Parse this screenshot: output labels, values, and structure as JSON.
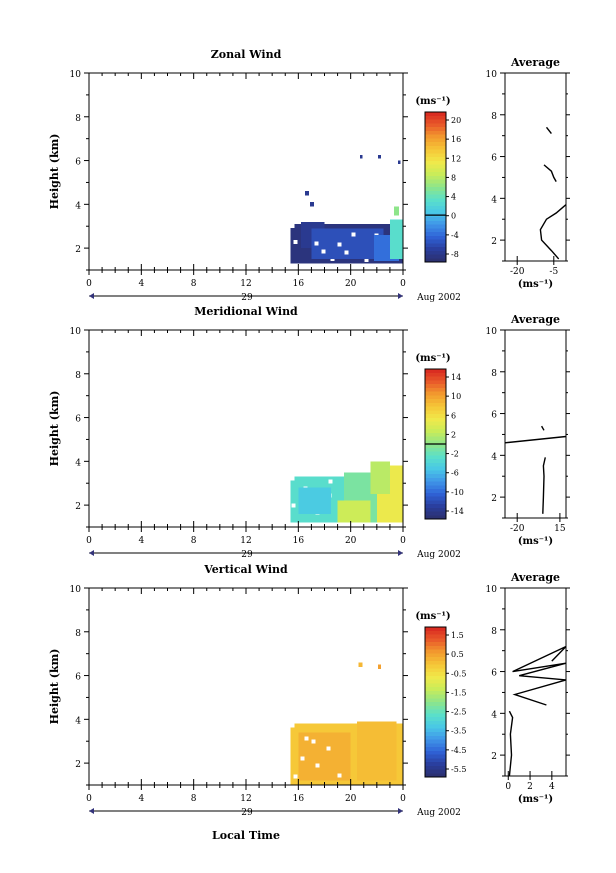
{
  "figure": {
    "date_label": "Aug 2002",
    "day_label": "29",
    "xlabel": "Local Time",
    "ylabel": "Height (km)",
    "avg_title": "Average",
    "unit_label": "(ms⁻¹)"
  },
  "chart_data": [
    {
      "type": "heatmap",
      "title": "Zonal Wind",
      "xlabel": "",
      "ylabel": "Height (km)",
      "xlim": [
        0,
        24
      ],
      "ylim": [
        1,
        10
      ],
      "xticks": [
        "0",
        "4",
        "8",
        "12",
        "16",
        "20",
        "0"
      ],
      "yticks": [
        "2",
        "4",
        "6",
        "8",
        "10"
      ],
      "colorbar": {
        "label": "(ms⁻¹)",
        "ticks": [
          "20",
          "16",
          "12",
          "8",
          "4",
          "0",
          "-4",
          "-8"
        ],
        "min": -10,
        "max": 22,
        "contour_at": 0
      },
      "data_blocks": [
        {
          "x0": 15.4,
          "x1": 24.0,
          "y0": 1.3,
          "y1": 3.1,
          "value": -9
        },
        {
          "x0": 16.2,
          "x1": 18.0,
          "y0": 2.0,
          "y1": 3.2,
          "value": -8
        },
        {
          "x0": 17.0,
          "x1": 22.5,
          "y0": 1.5,
          "y1": 2.9,
          "value": -6
        },
        {
          "x0": 21.8,
          "x1": 23.7,
          "y0": 1.4,
          "y1": 2.6,
          "value": -4
        },
        {
          "x0": 23.0,
          "x1": 24.0,
          "y0": 1.5,
          "y1": 3.3,
          "value": 3
        },
        {
          "x0": 23.3,
          "x1": 23.7,
          "y0": 3.5,
          "y1": 3.9,
          "value": 6
        },
        {
          "x0": 16.5,
          "x1": 16.8,
          "y0": 4.4,
          "y1": 4.6,
          "value": -8
        },
        {
          "x0": 16.9,
          "x1": 17.2,
          "y0": 3.9,
          "y1": 4.1,
          "value": -8
        },
        {
          "x0": 20.7,
          "x1": 20.9,
          "y0": 6.1,
          "y1": 6.25,
          "value": -8
        },
        {
          "x0": 22.1,
          "x1": 22.3,
          "y0": 6.1,
          "y1": 6.25,
          "value": -8
        },
        {
          "x0": 23.6,
          "x1": 23.8,
          "y0": 5.85,
          "y1": 6.0,
          "value": -8
        }
      ],
      "average_profile": {
        "xlim": [
          -25,
          0
        ],
        "ylim": [
          1,
          10
        ],
        "xticks": [
          "-20",
          "-5"
        ],
        "yticks": [
          "2",
          "4",
          "6",
          "8",
          "10"
        ],
        "xlabel": "(ms⁻¹)",
        "segments": [
          [
            [
              -3,
              1.1
            ],
            [
              -6,
              1.5
            ],
            [
              -10,
              2.0
            ],
            [
              -10.5,
              2.5
            ],
            [
              -8,
              3.0
            ],
            [
              -4,
              3.3
            ],
            [
              -1,
              3.6
            ],
            [
              0,
              3.7
            ]
          ],
          [
            [
              -9,
              5.6
            ],
            [
              -6,
              5.3
            ],
            [
              -5,
              5.0
            ],
            [
              -4,
              4.8
            ]
          ],
          [
            [
              -8,
              7.4
            ],
            [
              -6,
              7.1
            ]
          ]
        ]
      }
    },
    {
      "type": "heatmap",
      "title": "Meridional Wind",
      "xlabel": "",
      "ylabel": "Height (km)",
      "xlim": [
        0,
        24
      ],
      "ylim": [
        1,
        10
      ],
      "xticks": [
        "0",
        "4",
        "8",
        "12",
        "16",
        "20",
        "0"
      ],
      "yticks": [
        "2",
        "4",
        "6",
        "8",
        "10"
      ],
      "colorbar": {
        "label": "(ms⁻¹)",
        "ticks": [
          "14",
          "10",
          "6",
          "2",
          "-2",
          "-6",
          "-10",
          "-14"
        ],
        "min": -16,
        "max": 16,
        "contour_at": 0
      },
      "data_blocks": [
        {
          "x0": 15.4,
          "x1": 19.5,
          "y0": 1.2,
          "y1": 3.3,
          "value": -3
        },
        {
          "x0": 19.5,
          "x1": 22.0,
          "y0": 1.2,
          "y1": 3.5,
          "value": -1
        },
        {
          "x0": 16.0,
          "x1": 18.5,
          "y0": 1.6,
          "y1": 2.8,
          "value": -5
        },
        {
          "x0": 22.0,
          "x1": 24.0,
          "y0": 1.2,
          "y1": 3.8,
          "value": 5
        },
        {
          "x0": 19.0,
          "x1": 21.5,
          "y0": 1.2,
          "y1": 2.2,
          "value": 3
        },
        {
          "x0": 21.5,
          "x1": 23.0,
          "y0": 2.5,
          "y1": 4.0,
          "value": 2
        }
      ],
      "average_profile": {
        "xlim": [
          -30,
          20
        ],
        "ylim": [
          1,
          10
        ],
        "xticks": [
          "-20",
          "15"
        ],
        "yticks": [
          "2",
          "4",
          "6",
          "8",
          "10"
        ],
        "xlabel": "(ms⁻¹)",
        "segments": [
          [
            [
              1,
              1.2
            ],
            [
              1.5,
              2.0
            ],
            [
              2,
              3.0
            ],
            [
              1.5,
              3.5
            ],
            [
              3,
              3.9
            ]
          ],
          [
            [
              -30,
              4.6
            ],
            [
              20,
              4.9
            ]
          ],
          [
            [
              0,
              5.4
            ],
            [
              2,
              5.2
            ]
          ]
        ]
      }
    },
    {
      "type": "heatmap",
      "title": "Vertical Wind",
      "xlabel": "Local Time",
      "ylabel": "Height (km)",
      "xlim": [
        0,
        24
      ],
      "ylim": [
        1,
        10
      ],
      "xticks": [
        "0",
        "4",
        "8",
        "12",
        "16",
        "20",
        "0"
      ],
      "yticks": [
        "2",
        "4",
        "6",
        "8",
        "10"
      ],
      "colorbar": {
        "label": "(ms⁻¹)",
        "ticks": [
          "1.5",
          "0.5",
          "-0.5",
          "-1.5",
          "-2.5",
          "-3.5",
          "-4.5",
          "-5.5"
        ],
        "min": -6.5,
        "max": 2.5
      },
      "data_blocks": [
        {
          "x0": 15.4,
          "x1": 24.0,
          "y0": 1.0,
          "y1": 3.8,
          "value": 0.2
        },
        {
          "x0": 16.0,
          "x1": 20.0,
          "y0": 1.2,
          "y1": 3.4,
          "value": 0.6
        },
        {
          "x0": 20.5,
          "x1": 23.5,
          "y0": 1.2,
          "y1": 3.9,
          "value": 0.4
        },
        {
          "x0": 20.6,
          "x1": 20.9,
          "y0": 6.4,
          "y1": 6.6,
          "value": 0.5
        },
        {
          "x0": 22.1,
          "x1": 22.3,
          "y0": 6.3,
          "y1": 6.5,
          "value": 0.9
        }
      ],
      "average_profile": {
        "xlim": [
          -0.3,
          5.3
        ],
        "ylim": [
          1,
          10
        ],
        "xticks": [
          "0",
          "2",
          "4"
        ],
        "yticks": [
          "2",
          "4",
          "6",
          "8",
          "10"
        ],
        "xlabel": "(ms⁻¹)",
        "segments": [
          [
            [
              0.1,
              1.0
            ],
            [
              0.3,
              2.0
            ],
            [
              0.2,
              3.0
            ],
            [
              0.4,
              3.8
            ],
            [
              0.1,
              4.1
            ]
          ],
          [
            [
              3.5,
              4.4
            ],
            [
              0.6,
              4.9
            ],
            [
              5.3,
              5.6
            ],
            [
              1.0,
              5.8
            ],
            [
              5.3,
              6.4
            ],
            [
              0.4,
              6.0
            ],
            [
              5.3,
              7.2
            ],
            [
              4.0,
              6.5
            ]
          ]
        ]
      }
    }
  ]
}
